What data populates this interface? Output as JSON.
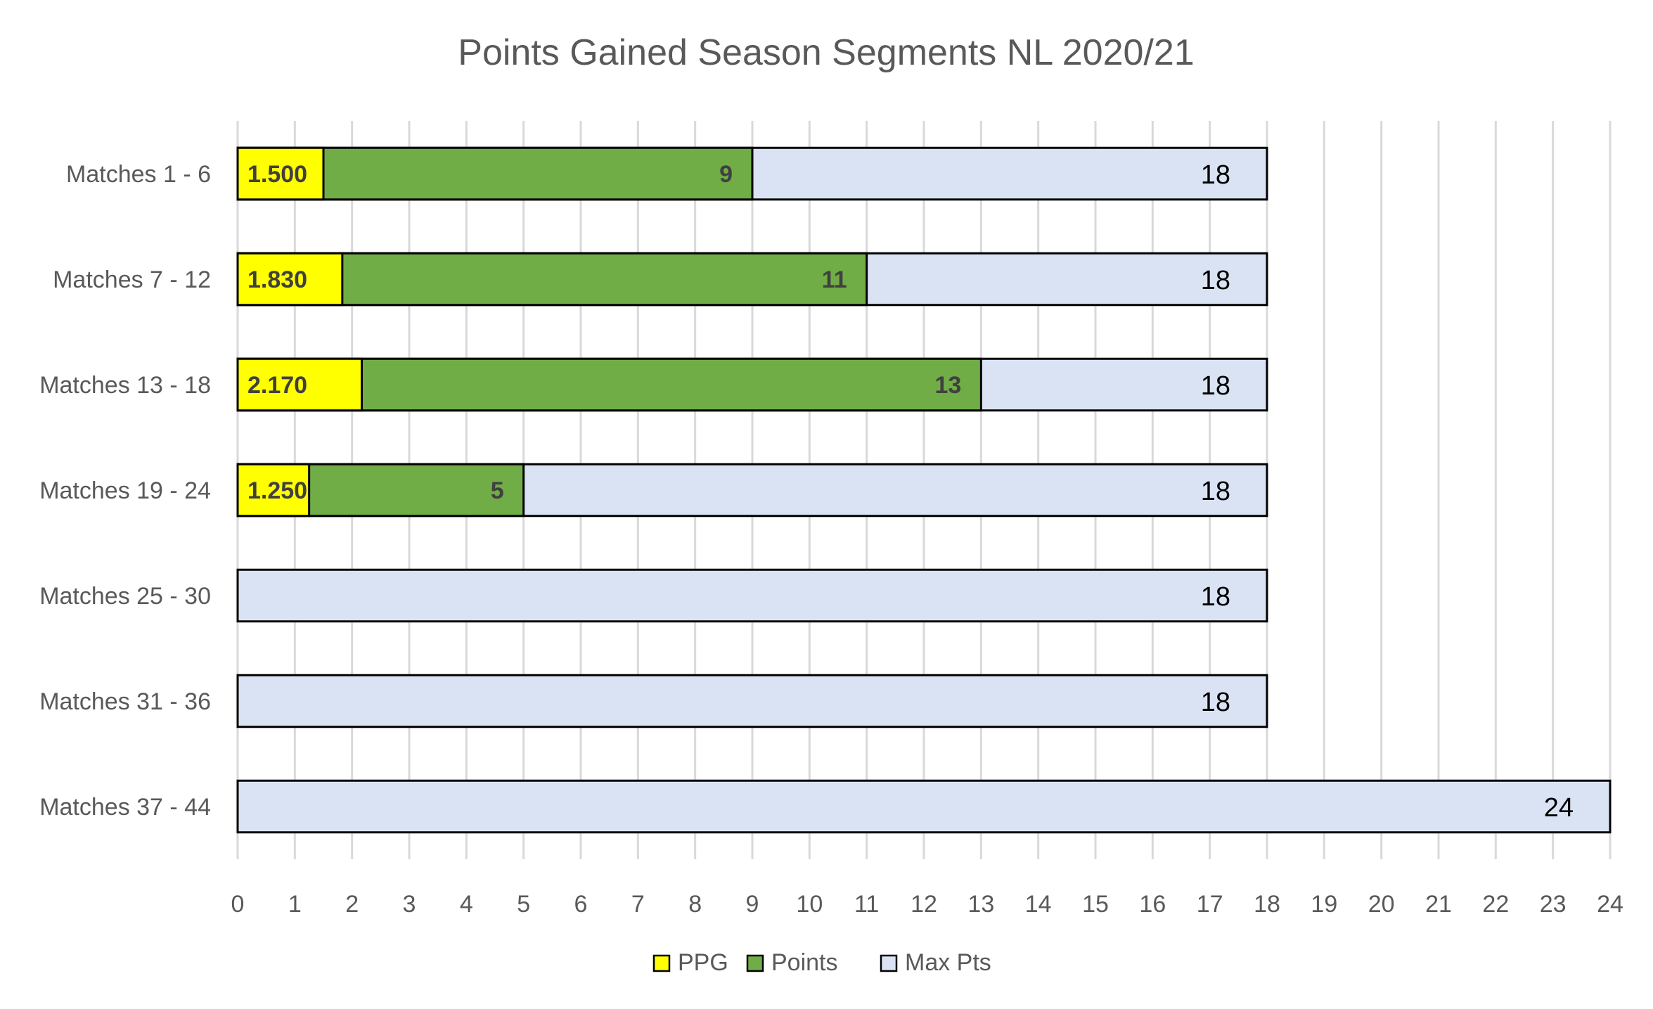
{
  "chart_data": {
    "type": "bar",
    "orientation": "horizontal",
    "stacking": "overlay",
    "title": "Points Gained Season Segments NL 2020/21",
    "categories": [
      "Matches 1 - 6",
      "Matches 7 - 12",
      "Matches 13 - 18",
      "Matches 19 - 24",
      "Matches 25 - 30",
      "Matches 31 - 36",
      "Matches 37 - 44"
    ],
    "series": [
      {
        "name": "PPG",
        "color": "#ffff00",
        "values": [
          1.5,
          1.83,
          2.17,
          1.25,
          null,
          null,
          null
        ],
        "labels": [
          "1.500",
          "1.830",
          "2.170",
          "1.250",
          "",
          "",
          ""
        ]
      },
      {
        "name": "Points",
        "color": "#70ad47",
        "values": [
          9,
          11,
          13,
          5,
          null,
          null,
          null
        ],
        "labels": [
          "9",
          "11",
          "13",
          "5",
          "",
          "",
          ""
        ]
      },
      {
        "name": "Max Pts",
        "color": "#dae3f3",
        "values": [
          18,
          18,
          18,
          18,
          18,
          18,
          24
        ],
        "labels": [
          "18",
          "18",
          "18",
          "18",
          "18",
          "18",
          "24"
        ]
      }
    ],
    "xlim": [
      0,
      24
    ],
    "xticks": [
      "0",
      "1",
      "2",
      "3",
      "4",
      "5",
      "6",
      "7",
      "8",
      "9",
      "10",
      "11",
      "12",
      "13",
      "14",
      "15",
      "16",
      "17",
      "18",
      "19",
      "20",
      "21",
      "22",
      "23",
      "24"
    ],
    "grid": "vertical",
    "legend": "bottom"
  }
}
